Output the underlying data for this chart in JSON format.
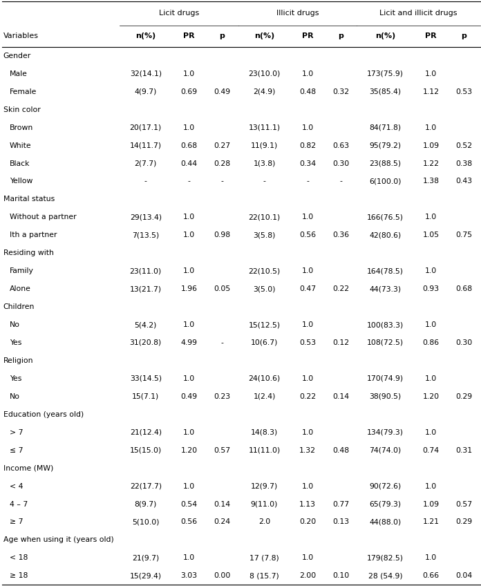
{
  "col_groups": [
    "Licit drugs",
    "Illicit drugs",
    "Licit and illicit drugs"
  ],
  "col_headers": [
    "n(%)",
    "PR",
    "p",
    "n(%)",
    "PR",
    "p",
    "n(%)",
    "PR",
    "p"
  ],
  "row_header": "Variables",
  "rows": [
    {
      "label": "Gender",
      "type": "section",
      "data": [
        "",
        "",
        "",
        "",
        "",
        "",
        "",
        "",
        ""
      ]
    },
    {
      "label": "Male",
      "type": "data",
      "data": [
        "32(14.1)",
        "1.0",
        "",
        "23(10.0)",
        "1.0",
        "",
        "173(75.9)",
        "1.0",
        ""
      ]
    },
    {
      "label": "Female",
      "type": "data",
      "data": [
        "4(9.7)",
        "0.69",
        "0.49",
        "2(4.9)",
        "0.48",
        "0.32",
        "35(85.4)",
        "1.12",
        "0.53"
      ]
    },
    {
      "label": "Skin color",
      "type": "section",
      "data": [
        "",
        "",
        "",
        "",
        "",
        "",
        "",
        "",
        ""
      ]
    },
    {
      "label": "Brown",
      "type": "data",
      "data": [
        "20(17.1)",
        "1.0",
        "",
        "13(11.1)",
        "1.0",
        "",
        "84(71.8)",
        "1.0",
        ""
      ]
    },
    {
      "label": "White",
      "type": "data",
      "data": [
        "14(11.7)",
        "0.68",
        "0.27",
        "11(9.1)",
        "0.82",
        "0.63",
        "95(79.2)",
        "1.09",
        "0.52"
      ]
    },
    {
      "label": "Black",
      "type": "data",
      "data": [
        "2(7.7)",
        "0.44",
        "0.28",
        "1(3.8)",
        "0.34",
        "0.30",
        "23(88.5)",
        "1.22",
        "0.38"
      ]
    },
    {
      "label": "Yellow",
      "type": "data",
      "data": [
        "-",
        "-",
        "-",
        "-",
        "-",
        "-",
        "6(100.0)",
        "1.38",
        "0.43"
      ]
    },
    {
      "label": "Marital status",
      "type": "section",
      "data": [
        "",
        "",
        "",
        "",
        "",
        "",
        "",
        "",
        ""
      ]
    },
    {
      "label": "Without a partner",
      "type": "data",
      "data": [
        "29(13.4)",
        "1.0",
        "",
        "22(10.1)",
        "1.0",
        "",
        "166(76.5)",
        "1.0",
        ""
      ]
    },
    {
      "label": "Ith a partner",
      "type": "data",
      "data": [
        "7(13.5)",
        "1.0",
        "0.98",
        "3(5.8)",
        "0.56",
        "0.36",
        "42(80.6)",
        "1.05",
        "0.75"
      ]
    },
    {
      "label": "Residing with",
      "type": "section",
      "data": [
        "",
        "",
        "",
        "",
        "",
        "",
        "",
        "",
        ""
      ]
    },
    {
      "label": "Family",
      "type": "data",
      "data": [
        "23(11.0)",
        "1.0",
        "",
        "22(10.5)",
        "1.0",
        "",
        "164(78.5)",
        "1.0",
        ""
      ]
    },
    {
      "label": "Alone",
      "type": "data",
      "data": [
        "13(21.7)",
        "1.96",
        "0.05",
        "3(5.0)",
        "0.47",
        "0.22",
        "44(73.3)",
        "0.93",
        "0.68"
      ]
    },
    {
      "label": "Children",
      "type": "section",
      "data": [
        "",
        "",
        "",
        "",
        "",
        "",
        "",
        "",
        ""
      ]
    },
    {
      "label": "No",
      "type": "data",
      "data": [
        "5(4.2)",
        "1.0",
        "",
        "15(12.5)",
        "1.0",
        "",
        "100(83.3)",
        "1.0",
        ""
      ]
    },
    {
      "label": "Yes",
      "type": "data",
      "data": [
        "31(20.8)",
        "4.99",
        "-",
        "10(6.7)",
        "0.53",
        "0.12",
        "108(72.5)",
        "0.86",
        "0.30"
      ]
    },
    {
      "label": "Religion",
      "type": "section",
      "data": [
        "",
        "",
        "",
        "",
        "",
        "",
        "",
        "",
        ""
      ]
    },
    {
      "label": "Yes",
      "type": "data",
      "data": [
        "33(14.5)",
        "1.0",
        "",
        "24(10.6)",
        "1.0",
        "",
        "170(74.9)",
        "1.0",
        ""
      ]
    },
    {
      "label": "No",
      "type": "data",
      "data": [
        "15(7.1)",
        "0.49",
        "0.23",
        "1(2.4)",
        "0.22",
        "0.14",
        "38(90.5)",
        "1.20",
        "0.29"
      ]
    },
    {
      "label": "Education (years old)",
      "type": "section",
      "data": [
        "",
        "",
        "",
        "",
        "",
        "",
        "",
        "",
        ""
      ]
    },
    {
      "label": "> 7",
      "type": "data",
      "data": [
        "21(12.4)",
        "1.0",
        "",
        "14(8.3)",
        "1.0",
        "",
        "134(79.3)",
        "1.0",
        ""
      ]
    },
    {
      "label": "≤ 7",
      "type": "data",
      "data": [
        "15(15.0)",
        "1.20",
        "0.57",
        "11(11.0)",
        "1.32",
        "0.48",
        "74(74.0)",
        "0.74",
        "0.31"
      ]
    },
    {
      "label": "Income (MW)",
      "type": "section",
      "data": [
        "",
        "",
        "",
        "",
        "",
        "",
        "",
        "",
        ""
      ]
    },
    {
      "label": "< 4",
      "type": "data",
      "data": [
        "22(17.7)",
        "1.0",
        "",
        "12(9.7)",
        "1.0",
        "",
        "90(72.6)",
        "1.0",
        ""
      ]
    },
    {
      "label": "4 – 7",
      "type": "data",
      "data": [
        "8(9.7)",
        "0.54",
        "0.14",
        "9(11.0)",
        "1.13",
        "0.77",
        "65(79.3)",
        "1.09",
        "0.57"
      ]
    },
    {
      "label": "≥ 7",
      "type": "data",
      "data": [
        "5(10.0)",
        "0.56",
        "0.24",
        "2.0",
        "0.20",
        "0.13",
        "44(88.0)",
        "1.21",
        "0.29"
      ]
    },
    {
      "label": "Age when using it (years old)",
      "type": "section",
      "data": [
        "",
        "",
        "",
        "",
        "",
        "",
        "",
        "",
        ""
      ]
    },
    {
      "label": "< 18",
      "type": "data",
      "data": [
        "21(9.7)",
        "1.0",
        "",
        "17 (7.8)",
        "1.0",
        "",
        "179(82.5)",
        "1.0",
        ""
      ]
    },
    {
      "label": "≥ 18",
      "type": "data",
      "data": [
        "15(29.4)",
        "3.03",
        "0.00",
        "8 (15.7)",
        "2.00",
        "0.10",
        "28 (54.9)",
        "0.66",
        "0.04"
      ]
    }
  ],
  "bg_color": "#ffffff",
  "text_color": "#000000",
  "line_color": "#000000",
  "header_fs": 8.0,
  "data_fs": 7.8,
  "section_fs": 7.8,
  "fig_width": 6.96,
  "fig_height": 8.48,
  "dpi": 100
}
